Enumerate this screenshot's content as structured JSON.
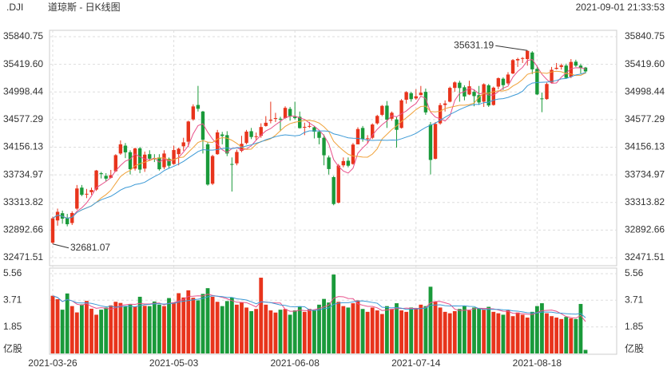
{
  "header": {
    "symbol": ".DJI",
    "name": "道琼斯 - 日K线图",
    "timestamp": "2021-09-01 21:33:53"
  },
  "chart_data": {
    "type": "candlestick",
    "categories": [
      "2021-03-26",
      null,
      null,
      null,
      null,
      null,
      null,
      null,
      null,
      null,
      null,
      null,
      null,
      null,
      null,
      null,
      null,
      null,
      null,
      null,
      null,
      null,
      null,
      null,
      null,
      "2021-05-03",
      null,
      null,
      null,
      null,
      null,
      null,
      null,
      null,
      null,
      null,
      null,
      null,
      null,
      null,
      null,
      null,
      null,
      null,
      null,
      null,
      null,
      null,
      null,
      null,
      "2021-06-08",
      null,
      null,
      null,
      null,
      null,
      null,
      null,
      null,
      null,
      null,
      null,
      null,
      null,
      null,
      null,
      null,
      null,
      null,
      null,
      null,
      null,
      null,
      null,
      null,
      "2021-07-14",
      null,
      null,
      null,
      null,
      null,
      null,
      null,
      null,
      null,
      null,
      null,
      null,
      null,
      null,
      null,
      null,
      null,
      null,
      null,
      null,
      null,
      null,
      null,
      null,
      "2021-08-18",
      null,
      null,
      null,
      null,
      null,
      null,
      null,
      null,
      null,
      null
    ],
    "candles": [
      [
        32700,
        33098,
        32681.07,
        33072
      ],
      [
        33040,
        33220,
        32960,
        33171
      ],
      [
        33150,
        33190,
        32990,
        33067
      ],
      [
        33080,
        33140,
        32950,
        32982
      ],
      [
        33000,
        33180,
        32970,
        33153
      ],
      [
        33220,
        33580,
        33200,
        33527
      ],
      [
        33540,
        33580,
        33410,
        33430
      ],
      [
        33440,
        33520,
        33380,
        33446
      ],
      [
        33470,
        33540,
        33430,
        33504
      ],
      [
        33510,
        33810,
        33490,
        33801
      ],
      [
        33760,
        33780,
        33680,
        33746
      ],
      [
        33720,
        33760,
        33640,
        33677
      ],
      [
        33690,
        33810,
        33680,
        33730
      ],
      [
        33790,
        34050,
        33780,
        34035
      ],
      [
        34060,
        34260,
        34040,
        34200
      ],
      [
        34180,
        34220,
        33990,
        34078
      ],
      [
        34080,
        34110,
        33740,
        33821
      ],
      [
        33830,
        34150,
        33800,
        34137
      ],
      [
        34140,
        34160,
        33760,
        33815
      ],
      [
        33830,
        34090,
        33780,
        34043
      ],
      [
        34050,
        34110,
        33950,
        33981
      ],
      [
        33990,
        34050,
        33930,
        33984
      ],
      [
        34000,
        34050,
        33800,
        33820
      ],
      [
        33850,
        34110,
        33820,
        34060
      ],
      [
        33980,
        34000,
        33830,
        33874
      ],
      [
        33900,
        34180,
        33890,
        34113
      ],
      [
        34050,
        34150,
        33880,
        34133
      ],
      [
        34170,
        34300,
        34100,
        34230
      ],
      [
        34240,
        34560,
        34160,
        34548
      ],
      [
        34580,
        34810,
        34560,
        34778
      ],
      [
        34800,
        35091,
        34700,
        34742
      ],
      [
        34700,
        34710,
        34060,
        34269
      ],
      [
        34200,
        34230,
        33570,
        33587
      ],
      [
        33600,
        34040,
        33580,
        34021
      ],
      [
        34050,
        34420,
        34040,
        34382
      ],
      [
        34350,
        34390,
        34200,
        34327
      ],
      [
        34340,
        34400,
        34020,
        34060
      ],
      [
        33900,
        34000,
        33480,
        33896
      ],
      [
        33910,
        34120,
        33880,
        34084
      ],
      [
        34100,
        34330,
        34080,
        34208
      ],
      [
        34220,
        34420,
        34200,
        34394
      ],
      [
        34400,
        34450,
        34280,
        34312
      ],
      [
        34320,
        34380,
        34260,
        34323
      ],
      [
        34330,
        34520,
        34300,
        34464
      ],
      [
        34480,
        34630,
        34470,
        34529
      ],
      [
        34560,
        34850,
        34520,
        34575
      ],
      [
        34590,
        34680,
        34540,
        34600
      ],
      [
        34590,
        34620,
        34400,
        34577
      ],
      [
        34600,
        34780,
        34590,
        34756
      ],
      [
        34740,
        34770,
        34560,
        34630
      ],
      [
        34620,
        34850,
        34580,
        34600
      ],
      [
        34620,
        34700,
        34440,
        34447
      ],
      [
        34460,
        34530,
        34340,
        34466
      ],
      [
        34480,
        34540,
        34450,
        34480
      ],
      [
        34460,
        34480,
        34290,
        34393
      ],
      [
        34390,
        34420,
        34200,
        34299
      ],
      [
        34300,
        34350,
        33880,
        34033
      ],
      [
        34000,
        34030,
        33740,
        33823
      ],
      [
        33700,
        33720,
        33271,
        33290
      ],
      [
        33310,
        33900,
        33300,
        33876
      ],
      [
        33880,
        34000,
        33850,
        33945
      ],
      [
        33950,
        34000,
        33850,
        33874
      ],
      [
        33900,
        34220,
        33890,
        34196
      ],
      [
        34200,
        34460,
        34200,
        34433
      ],
      [
        34450,
        34480,
        34240,
        34283
      ],
      [
        34290,
        34340,
        34210,
        34292
      ],
      [
        34300,
        34520,
        34280,
        34502
      ],
      [
        34520,
        34650,
        34500,
        34633
      ],
      [
        34650,
        34800,
        34630,
        34786
      ],
      [
        34790,
        34860,
        34450,
        34577
      ],
      [
        34590,
        34700,
        34560,
        34681
      ],
      [
        34580,
        34620,
        34150,
        34421
      ],
      [
        34450,
        34890,
        34440,
        34870
      ],
      [
        34880,
        35010,
        34820,
        34996
      ],
      [
        34980,
        35000,
        34850,
        34889
      ],
      [
        34900,
        35040,
        34880,
        34933
      ],
      [
        34950,
        35090,
        34950,
        34987
      ],
      [
        35000,
        35050,
        34650,
        34687
      ],
      [
        34500,
        34540,
        33741,
        33962
      ],
      [
        33980,
        34540,
        33970,
        34511
      ],
      [
        34520,
        34830,
        34500,
        34798
      ],
      [
        34800,
        34870,
        34700,
        34823
      ],
      [
        34850,
        35080,
        34840,
        35061
      ],
      [
        35060,
        35160,
        35000,
        35144
      ],
      [
        35140,
        35170,
        34850,
        35058
      ],
      [
        35070,
        35100,
        34870,
        34930
      ],
      [
        34960,
        35170,
        34950,
        35085
      ],
      [
        35000,
        35040,
        34780,
        34935
      ],
      [
        34950,
        35090,
        34800,
        34838
      ],
      [
        34850,
        35130,
        34770,
        35116
      ],
      [
        35100,
        35120,
        34770,
        34793
      ],
      [
        34800,
        35080,
        34790,
        35064
      ],
      [
        35080,
        35220,
        35040,
        35208
      ],
      [
        35200,
        35220,
        35030,
        35102
      ],
      [
        35130,
        35300,
        35110,
        35264
      ],
      [
        35280,
        35500,
        35270,
        35484
      ],
      [
        35480,
        35520,
        35380,
        35500
      ],
      [
        35510,
        35530,
        35440,
        35515
      ],
      [
        35500,
        35631.19,
        35400,
        35625
      ],
      [
        35600,
        35620,
        35270,
        35343
      ],
      [
        35350,
        35400,
        34950,
        34961
      ],
      [
        34900,
        34990,
        34690,
        34894
      ],
      [
        34890,
        35140,
        34880,
        35120
      ],
      [
        35140,
        35380,
        35130,
        35336
      ],
      [
        35350,
        35440,
        35340,
        35366
      ],
      [
        35380,
        35430,
        35340,
        35405
      ],
      [
        35400,
        35430,
        35200,
        35213
      ],
      [
        35230,
        35500,
        35210,
        35456
      ],
      [
        35460,
        35490,
        35380,
        35400
      ],
      [
        35400,
        35430,
        35280,
        35361
      ],
      [
        35370,
        35380,
        35280,
        35312
      ]
    ],
    "volumes": [
      4.02,
      3.78,
      3.05,
      4.18,
      3.3,
      2.86,
      3.42,
      3.66,
      3.12,
      2.7,
      3.05,
      3.2,
      3.35,
      3.6,
      3.52,
      3.3,
      3.4,
      3.28,
      3.95,
      3.32,
      3.3,
      3.62,
      3.4,
      3.3,
      3.86,
      3.55,
      4.2,
      3.9,
      4.4,
      3.88,
      3.7,
      4.15,
      4.55,
      3.95,
      3.6,
      3.3,
      3.65,
      3.9,
      3.4,
      3.55,
      3.2,
      2.95,
      3.1,
      5.28,
      3.4,
      3,
      2.85,
      3.05,
      3.1,
      2.7,
      3,
      3.25,
      2.9,
      3.1,
      3,
      3.4,
      3.8,
      3.55,
      5.5,
      3.6,
      3.3,
      3.2,
      3.5,
      3.7,
      3.1,
      2.9,
      3.2,
      3,
      2.75,
      3.3,
      3.1,
      3.5,
      3,
      2.9,
      3.2,
      3.15,
      3.4,
      3.3,
      4.65,
      3.6,
      3.2,
      2.9,
      2.8,
      2.95,
      3.1,
      3.3,
      3,
      3.2,
      3.15,
      3.05,
      3.25,
      2.9,
      2.8,
      2.7,
      3,
      2.6,
      2.85,
      2.7,
      2.5,
      2.9,
      3.3,
      3.5,
      2.8,
      2.6,
      2.5,
      2.4,
      2.55,
      2.45,
      2.4,
      3.45,
      0.25
    ],
    "ylim": [
      32471.51,
      35840.75
    ],
    "yticks": [
      32471.51,
      32892.66,
      33313.82,
      33734.97,
      34156.13,
      34577.29,
      34998.44,
      {
        "value": 35419.6,
        "label": "35419.60"
      },
      35840.75
    ],
    "y2lim": [
      0,
      5.56
    ],
    "y2ticks": [
      1.85,
      3.71,
      5.56
    ],
    "y2_unit": "亿股",
    "ma_periods": [
      5,
      10,
      20
    ],
    "ma_colors": [
      "#e8508a",
      "#f0a23a",
      "#3d9ad6"
    ],
    "volume_ma_periods": [
      5,
      10
    ],
    "volume_ma_colors": [
      "#e8508a",
      "#3d9ad6"
    ],
    "up_color": "#e8341c",
    "down_color": "#1a9a3a",
    "grid": true
  }
}
